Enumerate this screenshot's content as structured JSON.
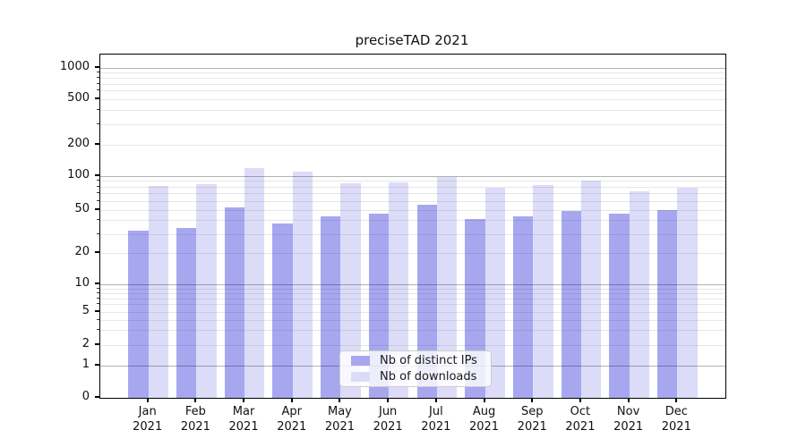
{
  "chart_data": {
    "type": "bar",
    "title": "preciseTAD 2021",
    "categories": [
      {
        "label": "Jan",
        "year": "2021"
      },
      {
        "label": "Feb",
        "year": "2021"
      },
      {
        "label": "Mar",
        "year": "2021"
      },
      {
        "label": "Apr",
        "year": "2021"
      },
      {
        "label": "May",
        "year": "2021"
      },
      {
        "label": "Jun",
        "year": "2021"
      },
      {
        "label": "Jul",
        "year": "2021"
      },
      {
        "label": "Aug",
        "year": "2021"
      },
      {
        "label": "Sep",
        "year": "2021"
      },
      {
        "label": "Oct",
        "year": "2021"
      },
      {
        "label": "Nov",
        "year": "2021"
      },
      {
        "label": "Dec",
        "year": "2021"
      }
    ],
    "series": [
      {
        "name": "Nb of distinct IPs",
        "color": "#a7a7f0",
        "values": [
          32,
          34,
          52,
          37,
          43,
          46,
          55,
          41,
          43,
          49,
          46,
          50
        ]
      },
      {
        "name": "Nb of downloads",
        "color": "#dddcf8",
        "values": [
          82,
          84,
          118,
          110,
          86,
          87,
          97,
          78,
          83,
          90,
          73,
          79
        ]
      }
    ],
    "yscale": "symlog",
    "yticks": [
      0,
      1,
      2,
      5,
      10,
      20,
      50,
      100,
      200,
      500,
      1000
    ],
    "ylim": [
      0,
      1000
    ],
    "grid": true,
    "legend_position": "lower-center",
    "colors": {
      "background": "#ffffff",
      "grid_major": "#b3b3b3",
      "grid_minor": "#e8e8e8",
      "spine": "#000000"
    }
  }
}
